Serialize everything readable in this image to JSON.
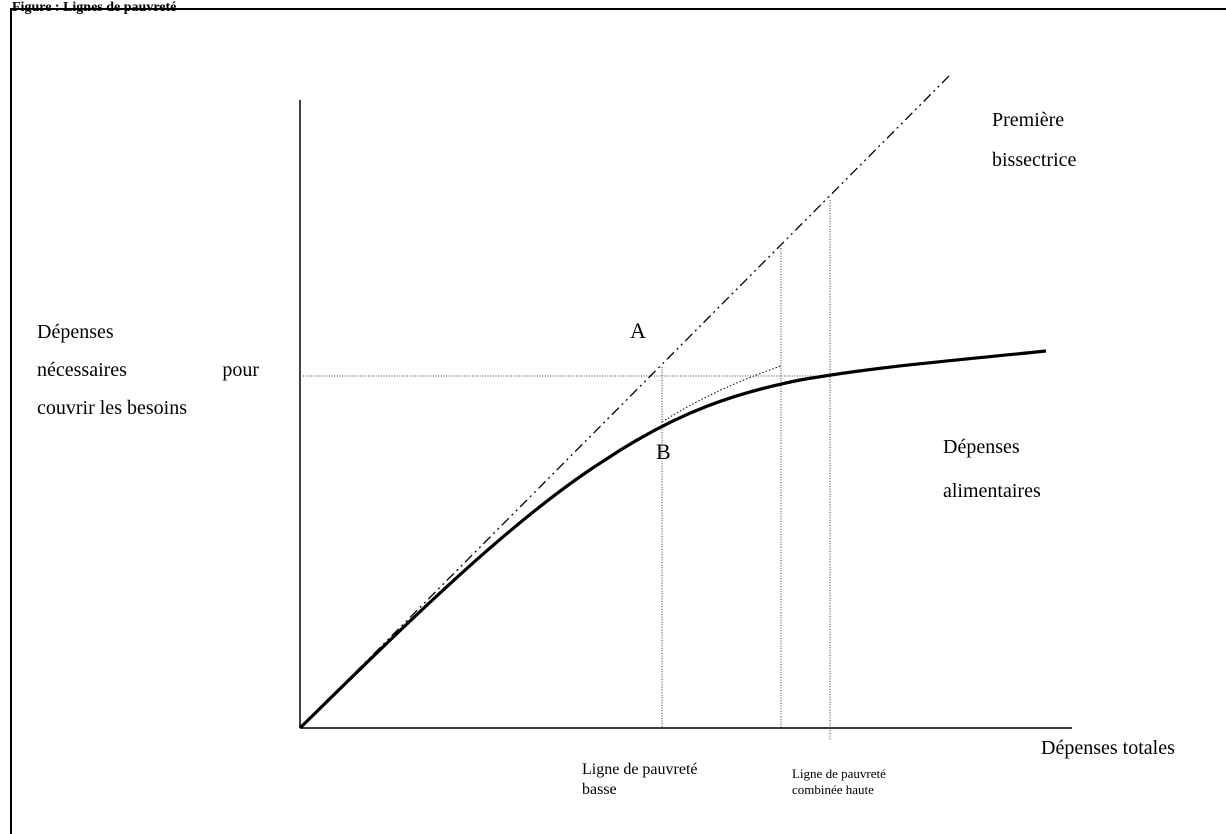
{
  "header": {
    "text": "Figure     : Lignes de pauvreté"
  },
  "chart_data": {
    "type": "line",
    "title": "",
    "xlabel": "Dépenses totales",
    "ylabel": [
      "Dépenses",
      "nécessaires",
      "pour",
      "couvrir les besoins"
    ],
    "series": [
      {
        "name": "Première bissectrice",
        "style": "dash-dot",
        "values": [
          [
            0,
            0
          ],
          [
            1,
            1
          ]
        ]
      },
      {
        "name": "Dépenses alimentaires",
        "style": "solid-thick",
        "values": [
          [
            0,
            0
          ],
          [
            0.1,
            0.1
          ],
          [
            0.2,
            0.19
          ],
          [
            0.3,
            0.27
          ],
          [
            0.35,
            0.3
          ],
          [
            0.4,
            0.32
          ],
          [
            0.5,
            0.35
          ],
          [
            0.6,
            0.37
          ],
          [
            0.7,
            0.38
          ],
          [
            0.8,
            0.39
          ],
          [
            0.9,
            0.4
          ],
          [
            1.0,
            0.41
          ]
        ]
      }
    ],
    "points": [
      {
        "label": "A",
        "x": 0.36,
        "y": 0.36
      },
      {
        "label": "B",
        "x": 0.36,
        "y": 0.3
      }
    ],
    "vertical_markers": [
      {
        "label_line1": "Ligne   de   pauvreté",
        "label_line2": "basse",
        "x": 0.36
      },
      {
        "label_line1": "Ligne    de    pauvreté",
        "label_line2": "combinée haute",
        "x": 0.47
      }
    ],
    "colors": {
      "lines": "#000000"
    }
  }
}
